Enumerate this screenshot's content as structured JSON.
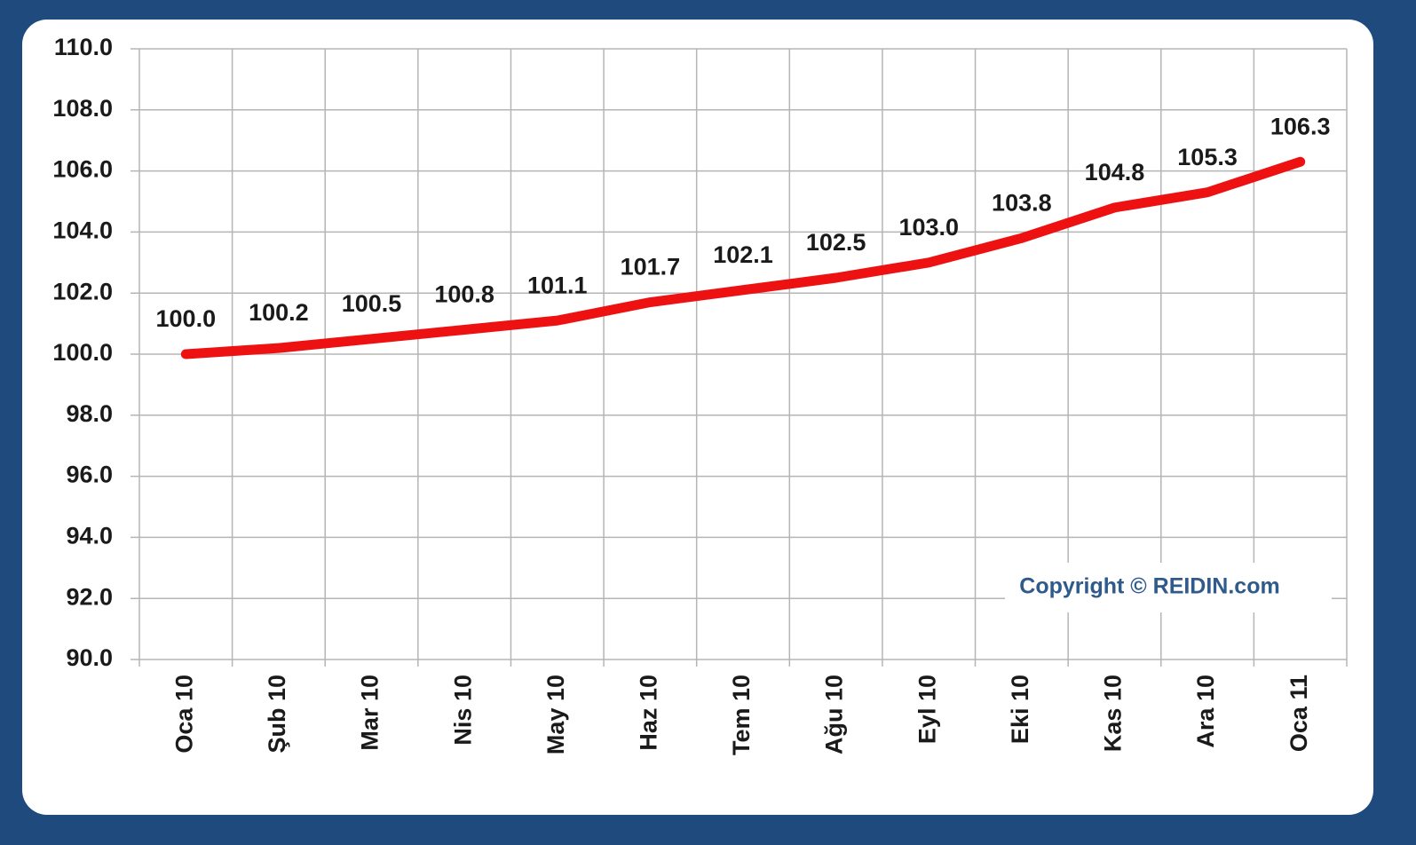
{
  "chart_data": {
    "type": "line",
    "categories": [
      "Oca 10",
      "Şub 10",
      "Mar 10",
      "Nis 10",
      "May 10",
      "Haz 10",
      "Tem 10",
      "Ağu 10",
      "Eyl 10",
      "Eki 10",
      "Kas 10",
      "Ara 10",
      "Oca 11"
    ],
    "series": [
      {
        "name": "REIDIN",
        "color": "#ee1111",
        "values": [
          100.0,
          100.2,
          100.5,
          100.8,
          101.1,
          101.7,
          102.1,
          102.5,
          103.0,
          103.8,
          104.8,
          105.3,
          106.3
        ],
        "value_labels": [
          "100.0",
          "100.2",
          "100.5",
          "100.8",
          "101.1",
          "101.7",
          "102.1",
          "102.5",
          "103.0",
          "103.8",
          "104.8",
          "105.3",
          "106.3"
        ]
      }
    ],
    "ylim": [
      90,
      110
    ],
    "yticks": [
      {
        "value": 90,
        "label": "90.0"
      },
      {
        "value": 92,
        "label": "92.0"
      },
      {
        "value": 94,
        "label": "94.0"
      },
      {
        "value": 96,
        "label": "96.0"
      },
      {
        "value": 98,
        "label": "98.0"
      },
      {
        "value": 100,
        "label": "100.0"
      },
      {
        "value": 102,
        "label": "102.0"
      },
      {
        "value": 104,
        "label": "104.0"
      },
      {
        "value": 106,
        "label": "106.0"
      },
      {
        "value": 108,
        "label": "108.0"
      },
      {
        "value": 110,
        "label": "110.0"
      }
    ],
    "grid": true,
    "annotation": "Copyright © REIDIN.com"
  }
}
